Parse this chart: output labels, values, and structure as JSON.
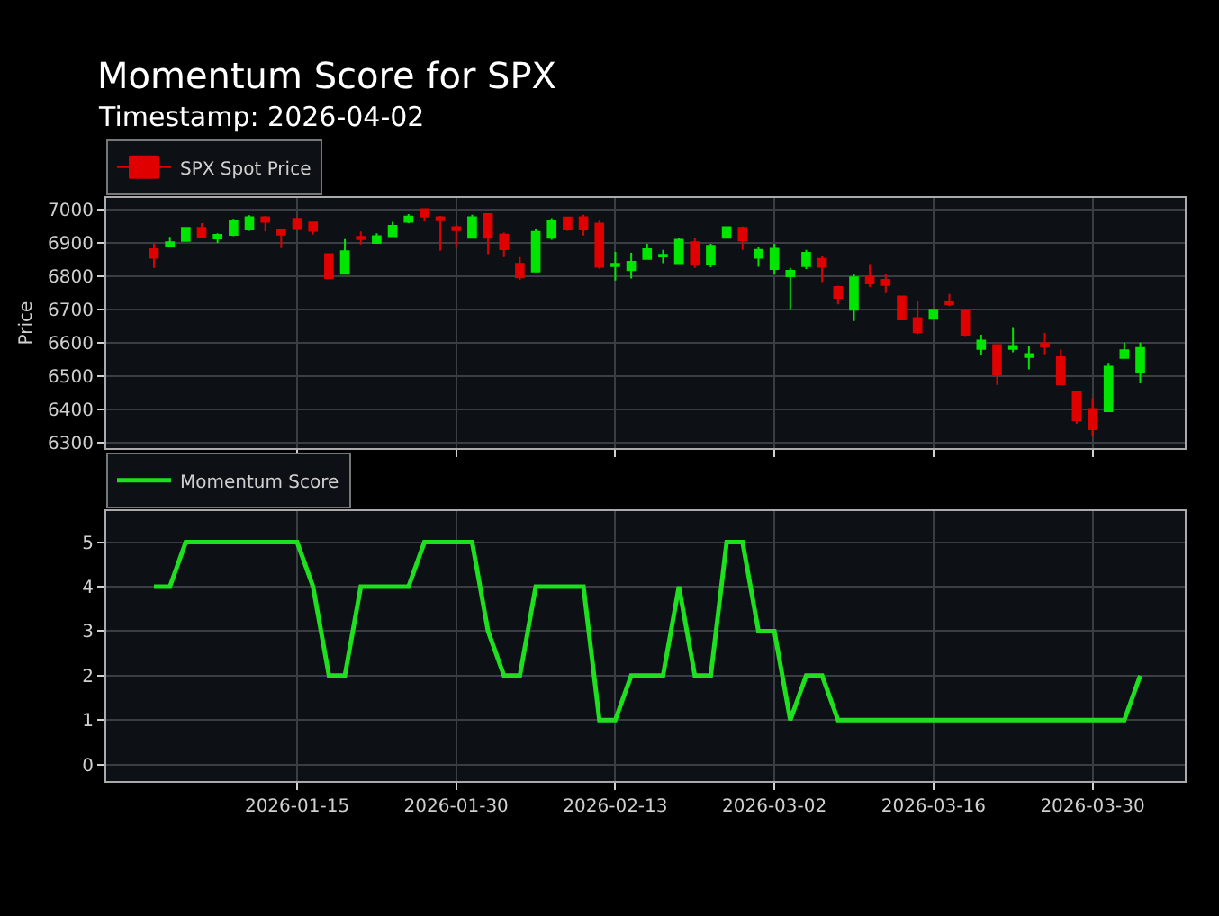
{
  "chart_data": [
    {
      "type": "candlestick",
      "title": "Momentum Score for SPX",
      "subtitle": "Timestamp: 2026-04-02",
      "ylabel": "Price",
      "categories": [
        null,
        null,
        null,
        null,
        null,
        null,
        null,
        null,
        null,
        "2026-01-15",
        null,
        null,
        null,
        null,
        null,
        null,
        null,
        null,
        null,
        "2026-01-30",
        null,
        null,
        null,
        null,
        null,
        null,
        null,
        null,
        null,
        "2026-02-13",
        null,
        null,
        null,
        null,
        null,
        null,
        null,
        null,
        null,
        "2026-03-02",
        null,
        null,
        null,
        null,
        null,
        null,
        null,
        null,
        null,
        "2026-03-16",
        null,
        null,
        null,
        null,
        null,
        null,
        null,
        null,
        null,
        "2026-03-30",
        null,
        null,
        null
      ],
      "series": [
        {
          "name": "SPX Spot Price",
          "ohlc": [
            [
              6882,
              6898,
              6826,
              6856
            ],
            [
              6892,
              6919,
              6889,
              6903
            ],
            [
              6907,
              6948,
              6905,
              6946
            ],
            [
              6946,
              6960,
              6916,
              6919
            ],
            [
              6914,
              6930,
              6901,
              6925
            ],
            [
              6925,
              6973,
              6921,
              6966
            ],
            [
              6941,
              6984,
              6937,
              6978
            ],
            [
              6978,
              6982,
              6935,
              6964
            ],
            [
              6939,
              6941,
              6885,
              6926
            ],
            [
              6973,
              6978,
              6941,
              6943
            ],
            [
              6962,
              6964,
              6926,
              6937
            ],
            [
              6867,
              6869,
              6793,
              6795
            ],
            [
              6808,
              6912,
              6806,
              6876
            ],
            [
              6919,
              6935,
              6896,
              6912
            ],
            [
              6901,
              6930,
              6899,
              6921
            ],
            [
              6921,
              6964,
              6918,
              6952
            ],
            [
              6964,
              6987,
              6960,
              6980
            ],
            [
              7002,
              7004,
              6966,
              6980
            ],
            [
              6978,
              6982,
              6877,
              6969
            ],
            [
              6948,
              6955,
              6885,
              6939
            ],
            [
              6916,
              6985,
              6916,
              6978
            ],
            [
              6987,
              6989,
              6867,
              6916
            ],
            [
              6926,
              6932,
              6858,
              6882
            ],
            [
              6838,
              6858,
              6790,
              6797
            ],
            [
              6815,
              6941,
              6815,
              6934
            ],
            [
              6916,
              6975,
              6910,
              6968
            ],
            [
              6977,
              6980,
              6937,
              6941
            ],
            [
              6978,
              6985,
              6923,
              6941
            ],
            [
              6959,
              6968,
              6823,
              6829
            ],
            [
              6831,
              6874,
              6788,
              6838
            ],
            [
              6819,
              6871,
              6794,
              6844
            ],
            [
              6853,
              6898,
              6850,
              6882
            ],
            [
              6860,
              6880,
              6840,
              6865
            ],
            [
              6840,
              6914,
              6838,
              6910
            ],
            [
              6903,
              6916,
              6826,
              6835
            ],
            [
              6837,
              6898,
              6828,
              6892
            ],
            [
              6916,
              6950,
              6914,
              6948
            ],
            [
              6946,
              6950,
              6880,
              6908
            ],
            [
              6856,
              6889,
              6829,
              6880
            ],
            [
              6822,
              6898,
              6808,
              6883
            ],
            [
              6801,
              6826,
              6702,
              6817
            ],
            [
              6831,
              6880,
              6822,
              6871
            ],
            [
              6853,
              6862,
              6783,
              6829
            ],
            [
              6768,
              6772,
              6716,
              6736
            ],
            [
              6700,
              6806,
              6666,
              6797
            ],
            [
              6799,
              6837,
              6768,
              6779
            ],
            [
              6790,
              6808,
              6750,
              6774
            ],
            [
              6740,
              6740,
              6671,
              6671
            ],
            [
              6675,
              6727,
              6626,
              6632
            ],
            [
              6673,
              6700,
              6671,
              6700
            ],
            [
              6725,
              6747,
              6711,
              6716
            ],
            [
              6698,
              6702,
              6621,
              6625
            ],
            [
              6582,
              6625,
              6563,
              6607
            ],
            [
              6594,
              6594,
              6474,
              6506
            ],
            [
              6582,
              6648,
              6572,
              6591
            ],
            [
              6558,
              6592,
              6521,
              6567
            ],
            [
              6599,
              6630,
              6566,
              6589
            ],
            [
              6557,
              6580,
              6476,
              6476
            ],
            [
              6454,
              6454,
              6357,
              6368
            ],
            [
              6402,
              6435,
              6319,
              6341
            ],
            [
              6395,
              6540,
              6395,
              6529
            ],
            [
              6555,
              6601,
              6555,
              6578
            ],
            [
              6512,
              6601,
              6479,
              6585
            ]
          ],
          "colors": [
            "#e00000",
            "#00e600",
            "#00e600",
            "#e00000",
            "#00e600",
            "#00e600",
            "#00e600",
            "#e00000",
            "#e00000",
            "#e00000",
            "#e00000",
            "#e00000",
            "#00e600",
            "#e00000",
            "#00e600",
            "#00e600",
            "#00e600",
            "#e00000",
            "#e00000",
            "#e00000",
            "#00e600",
            "#e00000",
            "#e00000",
            "#e00000",
            "#00e600",
            "#00e600",
            "#e00000",
            "#e00000",
            "#e00000",
            "#00e600",
            "#00e600",
            "#00e600",
            "#00e600",
            "#00e600",
            "#e00000",
            "#00e600",
            "#00e600",
            "#e00000",
            "#00e600",
            "#00e600",
            "#00e600",
            "#00e600",
            "#e00000",
            "#e00000",
            "#00e600",
            "#e00000",
            "#e00000",
            "#e00000",
            "#e00000",
            "#00e600",
            "#e00000",
            "#e00000",
            "#00e600",
            "#e00000",
            "#00e600",
            "#00e600",
            "#e00000",
            "#e00000",
            "#e00000",
            "#e00000",
            "#00e600",
            "#00e600",
            "#00e600"
          ]
        }
      ],
      "ylim": [
        6284,
        7036
      ],
      "yticks": [
        6300,
        6400,
        6500,
        6600,
        6700,
        6800,
        6900,
        7000
      ],
      "grid": true,
      "legend": "top left",
      "tick_labels": "y"
    },
    {
      "type": "line",
      "categories": [
        null,
        null,
        null,
        null,
        null,
        null,
        null,
        null,
        null,
        "2026-01-15",
        null,
        null,
        null,
        null,
        null,
        null,
        null,
        null,
        null,
        "2026-01-30",
        null,
        null,
        null,
        null,
        null,
        null,
        null,
        null,
        null,
        "2026-02-13",
        null,
        null,
        null,
        null,
        null,
        null,
        null,
        null,
        null,
        "2026-03-02",
        null,
        null,
        null,
        null,
        null,
        null,
        null,
        null,
        null,
        "2026-03-16",
        null,
        null,
        null,
        null,
        null,
        null,
        null,
        null,
        null,
        "2026-03-30",
        null,
        null,
        null
      ],
      "series": [
        {
          "name": "Momentum Score",
          "color": "#1ee01e",
          "values": [
            4,
            4,
            5,
            5,
            5,
            5,
            5,
            5,
            5,
            5,
            4,
            2,
            2,
            4,
            4,
            4,
            4,
            5,
            5,
            5,
            5,
            3,
            2,
            2,
            4,
            4,
            4,
            4,
            1,
            1,
            2,
            2,
            2,
            4,
            2,
            2,
            5,
            5,
            3,
            3,
            1,
            2,
            2,
            1,
            1,
            1,
            1,
            1,
            1,
            1,
            1,
            1,
            1,
            1,
            1,
            1,
            1,
            1,
            1,
            1,
            1,
            1,
            2
          ]
        }
      ],
      "ylim": [
        -0.37,
        5.7
      ],
      "yticks": [
        0,
        1,
        2,
        3,
        4,
        5
      ],
      "grid": true,
      "legend": "top left"
    }
  ]
}
